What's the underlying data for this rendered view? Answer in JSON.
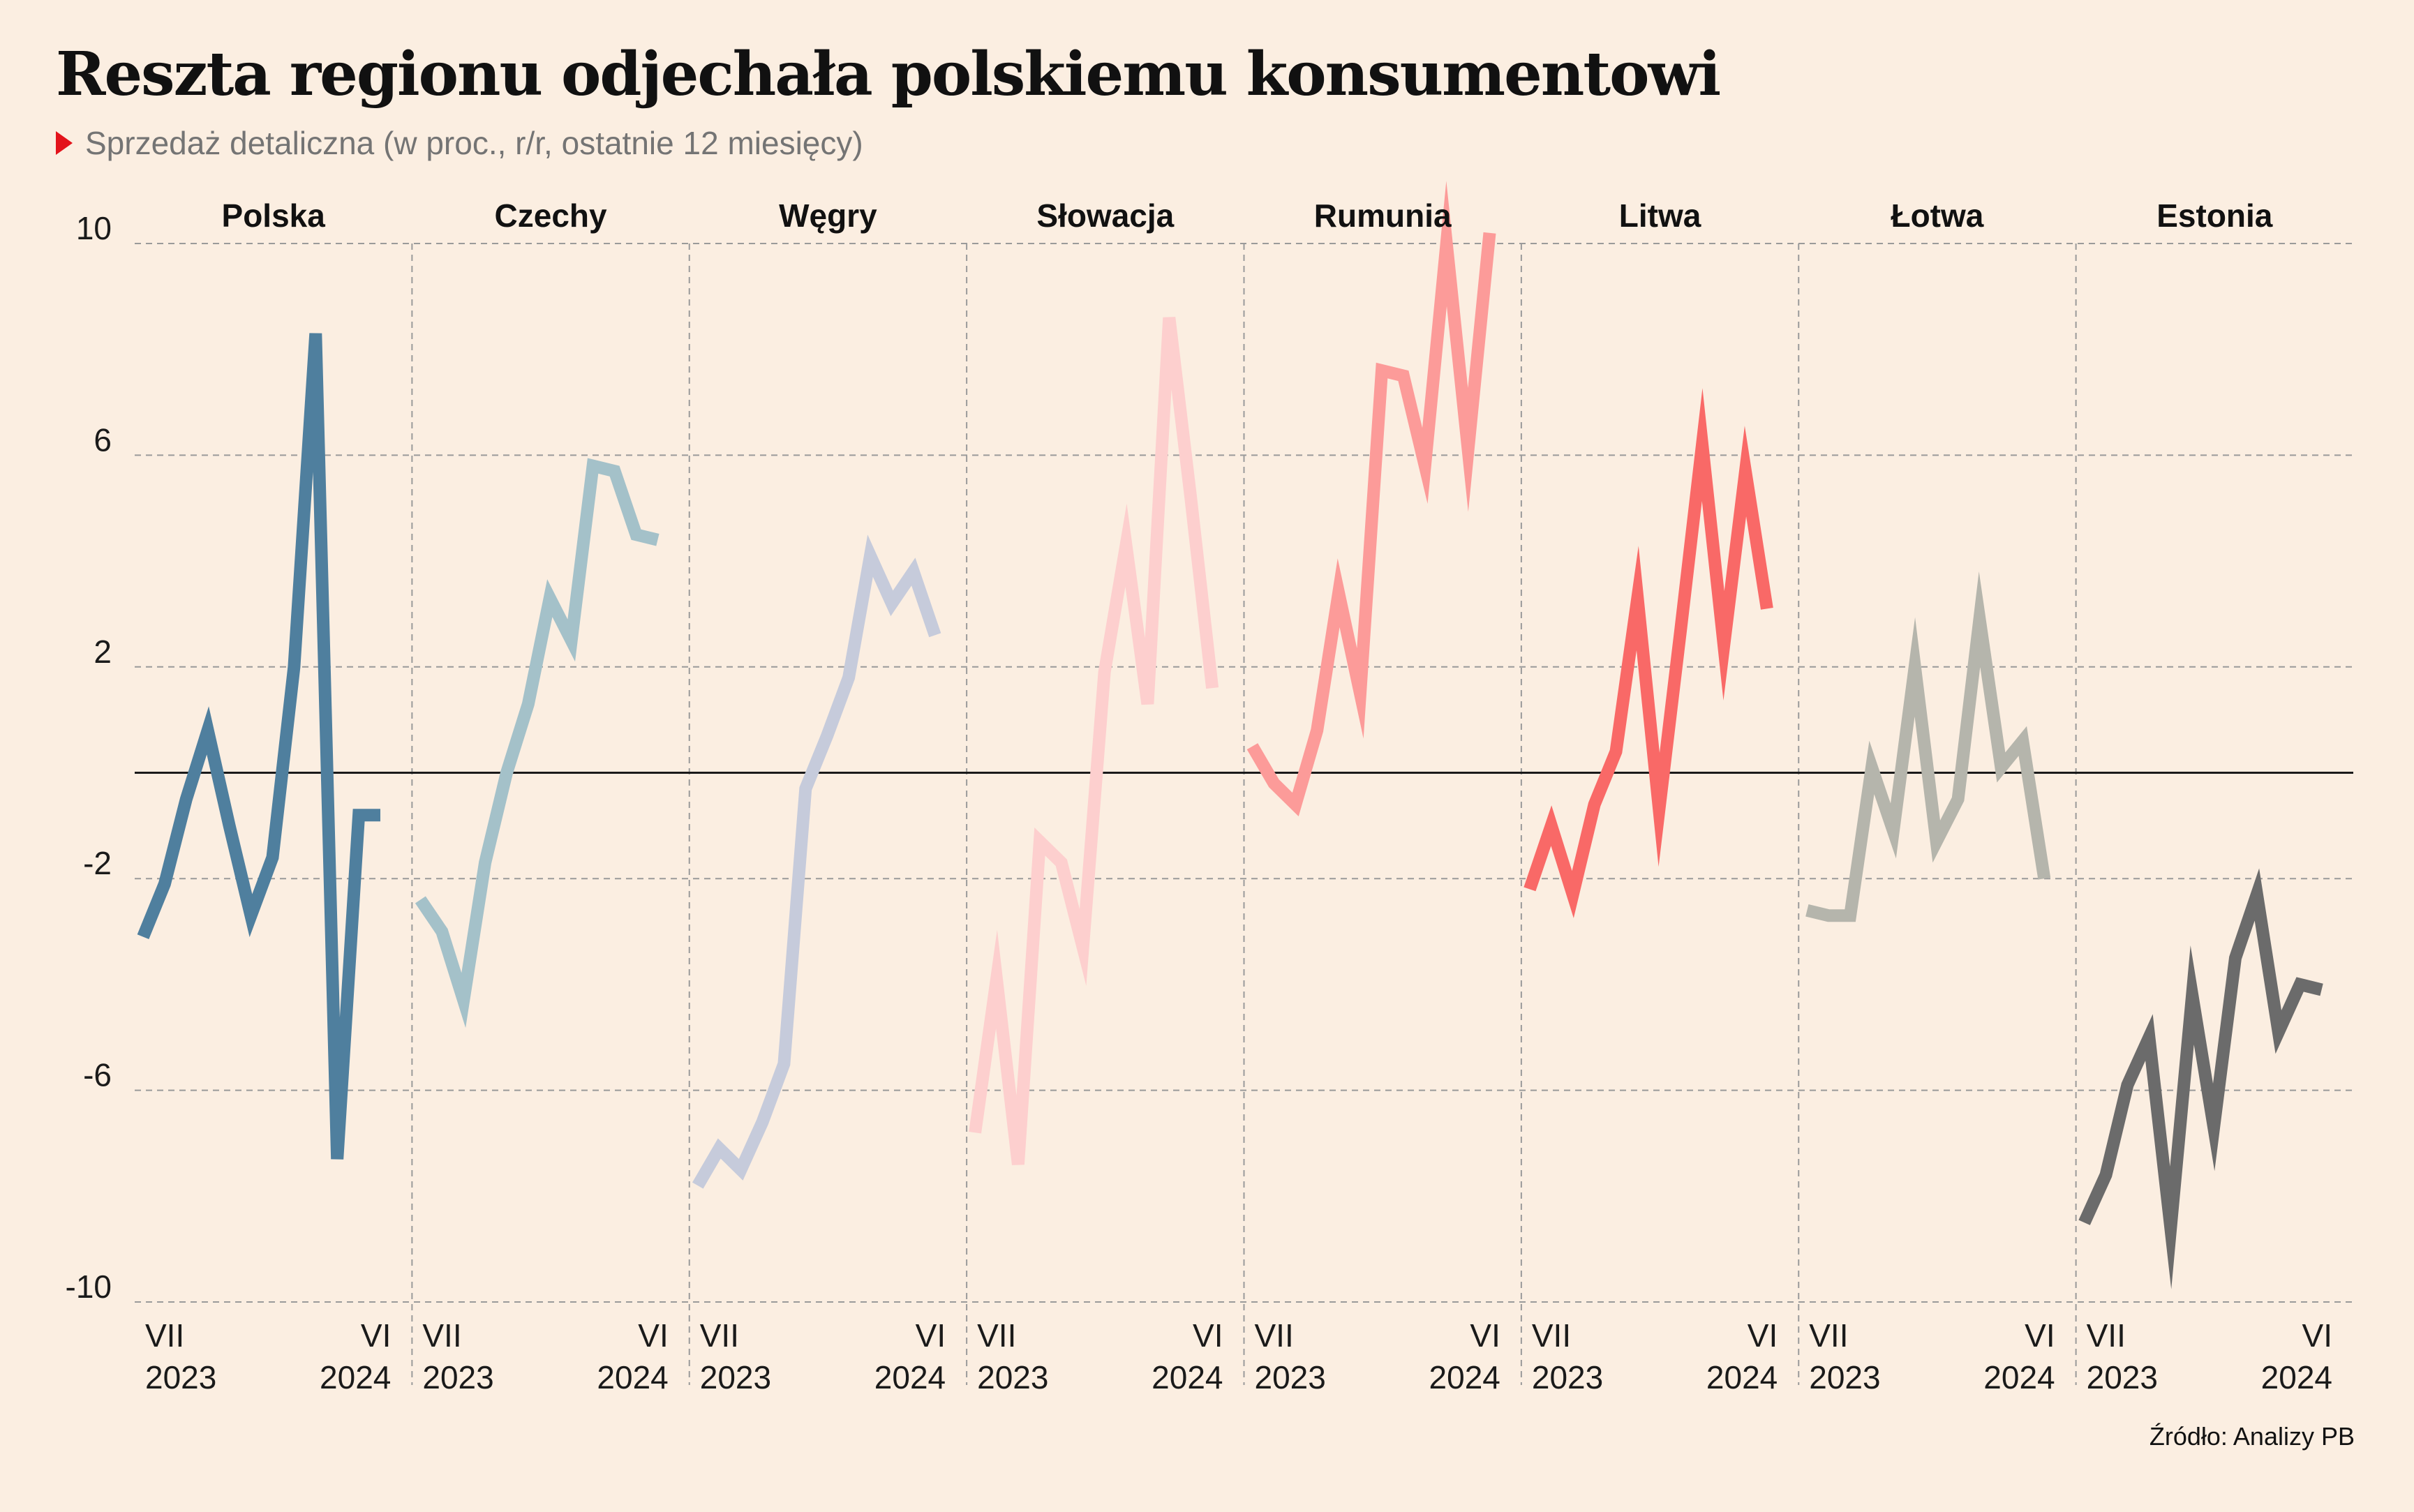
{
  "title": "Reszta regionu odjechała polskiemu konsumentowi",
  "subtitle": "Sprzedaż detaliczna (w proc., r/r, ostatnie 12 miesięcy)",
  "source": "Źródło: Analizy PB",
  "colors": {
    "background": "#fbeee1",
    "subtitle_marker": "#e3131b",
    "grid": "#9a9a9a",
    "zero_line": "#1a1a1a"
  },
  "chart_data": {
    "type": "line",
    "ylim": [
      -10,
      10
    ],
    "yticks": [
      10,
      6,
      2,
      -2,
      -6,
      -10
    ],
    "ytick_labels": [
      "10",
      "6",
      "2",
      "-2",
      "-6",
      "-10"
    ],
    "grid": true,
    "x": [
      "VII 2023",
      "VIII 2023",
      "IX 2023",
      "X 2023",
      "XI 2023",
      "XII 2023",
      "I 2024",
      "II 2024",
      "III 2024",
      "IV 2024",
      "V 2024",
      "VI 2024"
    ],
    "x_tick_labels": [
      {
        "month": "VII",
        "year": "2023"
      },
      {
        "month": "VI",
        "year": "2024"
      }
    ],
    "series": [
      {
        "name": "Polska",
        "color": "#4f7f9e",
        "values": [
          -3.1,
          -2.1,
          -0.5,
          0.8,
          -1.0,
          -2.7,
          -1.6,
          2.0,
          8.3,
          -7.3,
          -0.8,
          -0.8
        ]
      },
      {
        "name": "Czechy",
        "color": "#a4c1c9",
        "values": [
          -2.4,
          -3.0,
          -4.3,
          -1.7,
          0.0,
          1.3,
          3.3,
          2.5,
          5.8,
          5.7,
          4.5,
          4.4
        ]
      },
      {
        "name": "Węgry",
        "color": "#c6cbdb",
        "values": [
          -7.8,
          -7.1,
          -7.5,
          -6.6,
          -5.5,
          -0.3,
          0.7,
          1.8,
          4.1,
          3.2,
          3.8,
          2.6
        ]
      },
      {
        "name": "Słowacja",
        "color": "#fdcfce",
        "values": [
          -6.8,
          -3.9,
          -7.4,
          -1.3,
          -1.7,
          -3.3,
          1.9,
          4.3,
          1.3,
          8.6,
          5.2,
          1.6
        ]
      },
      {
        "name": "Rumunia",
        "color": "#fc9b99",
        "values": [
          0.5,
          -0.2,
          -0.6,
          0.8,
          3.4,
          1.5,
          7.6,
          7.5,
          5.8,
          10.0,
          6.1,
          10.2
        ]
      },
      {
        "name": "Litwa",
        "color": "#f96967",
        "values": [
          -2.2,
          -1.0,
          -2.3,
          -0.6,
          0.4,
          3.3,
          -0.7,
          2.7,
          6.2,
          2.4,
          5.7,
          3.1
        ]
      },
      {
        "name": "Łotwa",
        "color": "#b5b5ac",
        "values": [
          -2.6,
          -2.7,
          -2.7,
          0.1,
          -1.1,
          2.0,
          -1.3,
          -0.5,
          2.9,
          0.1,
          0.6,
          -2.0
        ]
      },
      {
        "name": "Estonia",
        "color": "#6b6b6b",
        "values": [
          -8.5,
          -7.6,
          -5.9,
          -5.0,
          -8.6,
          -4.2,
          -6.7,
          -3.5,
          -2.3,
          -4.9,
          -4.0,
          -4.1
        ]
      }
    ]
  }
}
